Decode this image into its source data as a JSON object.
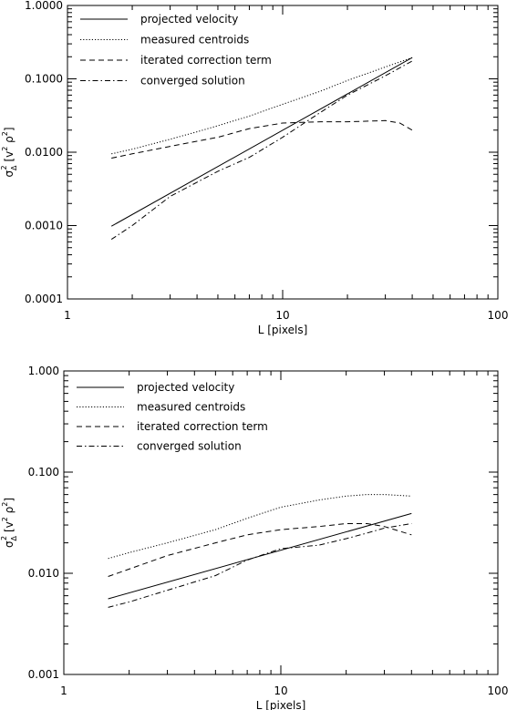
{
  "chart_data": [
    {
      "type": "line",
      "xscale": "log",
      "yscale": "log",
      "xlim": [
        1,
        100
      ],
      "ylim": [
        0.0001,
        1
      ],
      "xlabel": "L [pixels]",
      "ylabel": "σ_Δ^2 [v^2 ρ^2]",
      "ylabel_parts": {
        "sigma": "σ",
        "sub": "Δ",
        "sup": "2",
        "open": "[v",
        "sup2": "2",
        "mid": " ρ",
        "sup3": "2",
        "close": "]"
      },
      "xticks": [
        1,
        10,
        100
      ],
      "xtick_labels": [
        "1",
        "10",
        "100"
      ],
      "yticks": [
        0.0001,
        0.001,
        0.01,
        0.1,
        1
      ],
      "ytick_labels": [
        "0.0001",
        "0.0010",
        "0.0100",
        "0.1000",
        "1.0000"
      ],
      "legend_position": "top-left",
      "series": [
        {
          "name": "projected velocity",
          "style": "solid",
          "x": [
            1.6,
            40
          ],
          "y": [
            0.00098,
            0.195
          ]
        },
        {
          "name": "measured centroids",
          "style": "dotted",
          "x": [
            1.6,
            2,
            3,
            4,
            5,
            7,
            10,
            15,
            20,
            30,
            40
          ],
          "y": [
            0.0095,
            0.011,
            0.015,
            0.019,
            0.023,
            0.031,
            0.045,
            0.068,
            0.095,
            0.145,
            0.195
          ]
        },
        {
          "name": "iterated correction term",
          "style": "dashed",
          "x": [
            1.6,
            2,
            3,
            5,
            7,
            10,
            15,
            20,
            30,
            35,
            40
          ],
          "y": [
            0.0083,
            0.0095,
            0.012,
            0.016,
            0.021,
            0.025,
            0.026,
            0.026,
            0.027,
            0.025,
            0.02
          ]
        },
        {
          "name": "converged solution",
          "style": "dashdot",
          "x": [
            1.6,
            2,
            3,
            5,
            7,
            10,
            15,
            20,
            30,
            40
          ],
          "y": [
            0.00065,
            0.001,
            0.0025,
            0.0055,
            0.0085,
            0.016,
            0.035,
            0.06,
            0.11,
            0.175
          ]
        }
      ]
    },
    {
      "type": "line",
      "xscale": "log",
      "yscale": "log",
      "xlim": [
        1,
        100
      ],
      "ylim": [
        0.001,
        1
      ],
      "xlabel": "L [pixels]",
      "ylabel": "σ_Δ^2 [v^2 ρ^2]",
      "ylabel_parts": {
        "sigma": "σ",
        "sub": "Δ",
        "sup": "2",
        "open": "[v",
        "sup2": "2",
        "mid": " ρ",
        "sup3": "2",
        "close": "]"
      },
      "xticks": [
        1,
        10,
        100
      ],
      "xtick_labels": [
        "1",
        "10",
        "100"
      ],
      "yticks": [
        0.001,
        0.01,
        0.1,
        1
      ],
      "ytick_labels": [
        "0.001",
        "0.010",
        "0.100",
        "1.000"
      ],
      "legend_position": "top-left",
      "series": [
        {
          "name": "projected velocity",
          "style": "solid",
          "x": [
            1.6,
            40
          ],
          "y": [
            0.0056,
            0.039
          ]
        },
        {
          "name": "measured centroids",
          "style": "dotted",
          "x": [
            1.6,
            2,
            3,
            5,
            7,
            10,
            15,
            20,
            25,
            30,
            40
          ],
          "y": [
            0.014,
            0.016,
            0.02,
            0.027,
            0.035,
            0.045,
            0.053,
            0.058,
            0.06,
            0.06,
            0.058
          ]
        },
        {
          "name": "iterated correction term",
          "style": "dashed",
          "x": [
            1.6,
            2,
            3,
            5,
            7,
            10,
            15,
            20,
            25,
            30,
            40
          ],
          "y": [
            0.0093,
            0.011,
            0.015,
            0.02,
            0.024,
            0.027,
            0.029,
            0.031,
            0.031,
            0.029,
            0.024
          ]
        },
        {
          "name": "converged solution",
          "style": "dashdot",
          "x": [
            1.6,
            2,
            3,
            5,
            7,
            10,
            15,
            20,
            25,
            30,
            40
          ],
          "y": [
            0.0046,
            0.0052,
            0.0068,
            0.0095,
            0.0135,
            0.0175,
            0.019,
            0.022,
            0.025,
            0.028,
            0.031
          ]
        }
      ]
    }
  ]
}
